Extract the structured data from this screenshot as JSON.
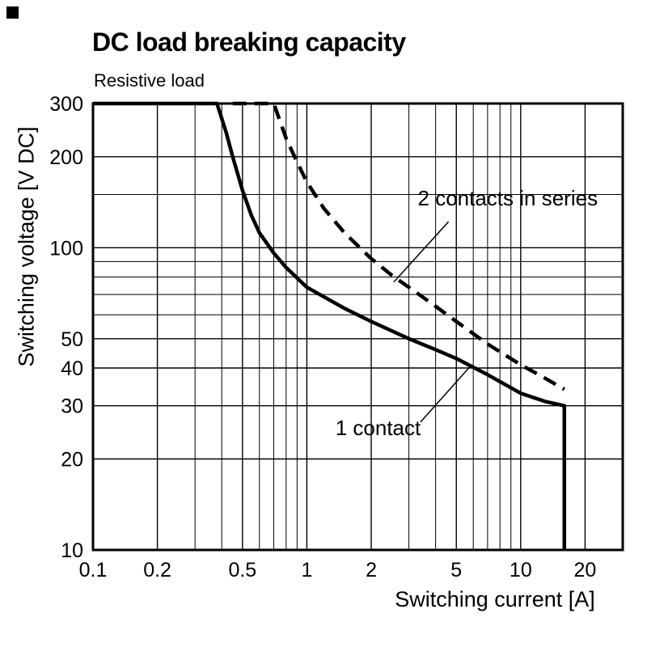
{
  "chart_data": {
    "type": "line",
    "title": "DC load breaking capacity",
    "subtitle": "Resistive load",
    "xlabel": "Switching current [A]",
    "ylabel": "Switching voltage [V DC]",
    "x_scale": "log",
    "y_scale": "log",
    "xlim": [
      0.1,
      30
    ],
    "ylim": [
      10,
      300
    ],
    "grid": true,
    "legend_position": "none",
    "colors": {
      "line": "#000000",
      "grid": "#000000",
      "background": "#ffffff"
    },
    "x_ticks": {
      "values": [
        0.1,
        0.2,
        0.5,
        1,
        2,
        5,
        10,
        20
      ],
      "labels": [
        "0.1",
        "0.2",
        "0.5",
        "1",
        "2",
        "5",
        "10",
        "20"
      ]
    },
    "y_ticks": {
      "values": [
        10,
        20,
        30,
        40,
        50,
        100,
        200,
        300
      ],
      "labels": [
        "10",
        "20",
        "30",
        "40",
        "50",
        "100",
        "200",
        "300"
      ]
    },
    "x_minor": [
      0.3,
      0.4,
      0.6,
      0.7,
      0.8,
      0.9,
      3,
      4,
      6,
      7,
      8,
      9
    ],
    "y_minor": [
      60,
      70,
      80,
      90,
      150
    ],
    "series": [
      {
        "name": "1 contact",
        "style": "solid",
        "points": [
          [
            0.1,
            300
          ],
          [
            0.38,
            300
          ],
          [
            0.42,
            240
          ],
          [
            0.45,
            200
          ],
          [
            0.5,
            155
          ],
          [
            0.55,
            128
          ],
          [
            0.6,
            112
          ],
          [
            0.7,
            96
          ],
          [
            0.8,
            86
          ],
          [
            1,
            74
          ],
          [
            1.5,
            63
          ],
          [
            2,
            57
          ],
          [
            3,
            50
          ],
          [
            4,
            46
          ],
          [
            5,
            43
          ],
          [
            7,
            38
          ],
          [
            10,
            33
          ],
          [
            13,
            31
          ],
          [
            16,
            30
          ],
          [
            16,
            10
          ]
        ]
      },
      {
        "name": "2 contacts in series",
        "style": "dashed",
        "points": [
          [
            0.45,
            300
          ],
          [
            0.7,
            300
          ],
          [
            0.8,
            230
          ],
          [
            0.9,
            192
          ],
          [
            1,
            165
          ],
          [
            1.2,
            135
          ],
          [
            1.5,
            112
          ],
          [
            2,
            92
          ],
          [
            2.5,
            81
          ],
          [
            3,
            74
          ],
          [
            4,
            64
          ],
          [
            5,
            57
          ],
          [
            7,
            48
          ],
          [
            10,
            41
          ],
          [
            13,
            37
          ],
          [
            16,
            34
          ]
        ]
      }
    ],
    "annotations": [
      {
        "text": "2 contacts in series",
        "text_at": [
          3.3,
          138
        ],
        "leader": [
          [
            4.6,
            122
          ],
          [
            2.55,
            77
          ]
        ]
      },
      {
        "text": "1 contact",
        "text_at": [
          1.36,
          24
        ],
        "leader": [
          [
            3.4,
            26.5
          ],
          [
            5.9,
            41
          ]
        ]
      }
    ]
  }
}
